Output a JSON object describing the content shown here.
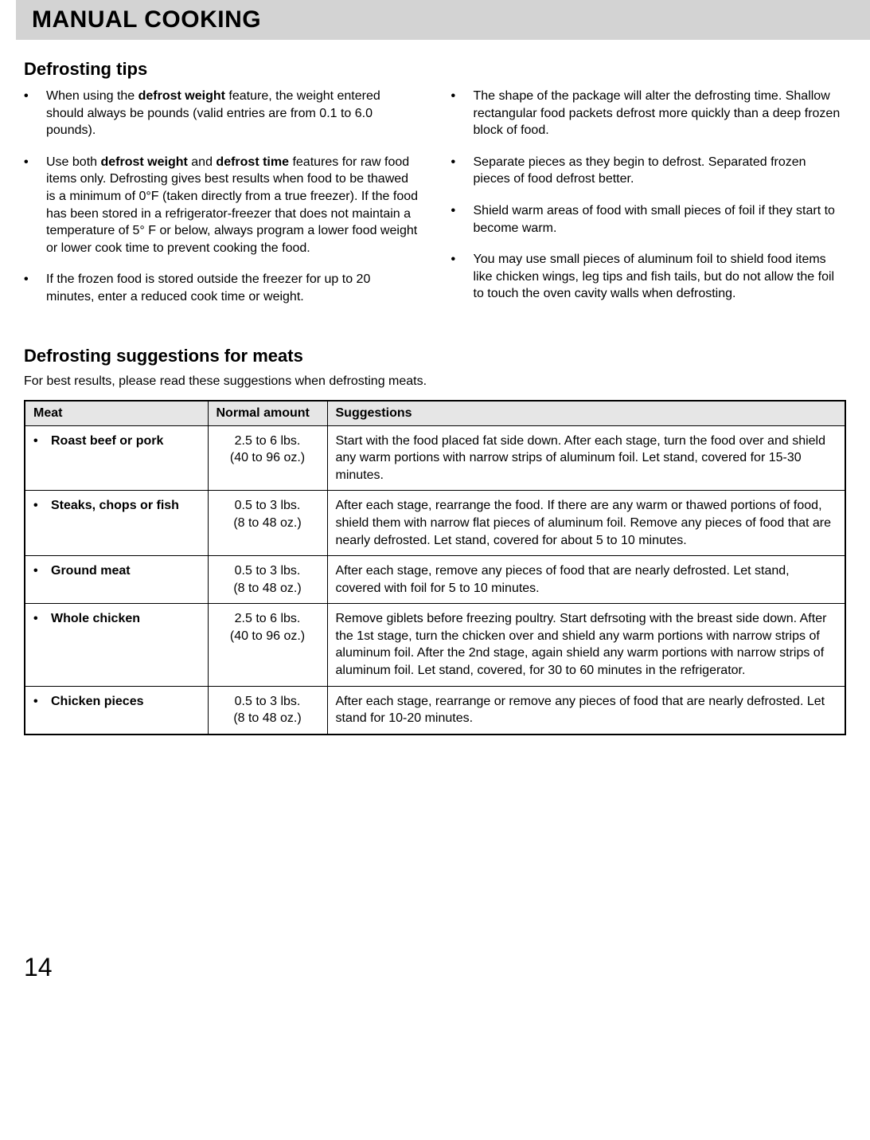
{
  "header": {
    "title": "MANUAL COOKING"
  },
  "tips": {
    "title": "Defrosting tips",
    "left": [
      {
        "prefix": "When using the ",
        "bold1": "defrost weight",
        "mid1": " feature, the weight entered should always be pounds (valid entries are from 0.1 to 6.0 pounds).",
        "bold2": "",
        "suffix": ""
      },
      {
        "prefix": "Use both ",
        "bold1": "defrost weight",
        "mid1": " and ",
        "bold2": "defrost time",
        "suffix": " features for raw food items only. Defrosting gives best results when food to be thawed is a minimum of 0°F (taken directly from a true freezer). If the food has been stored in a refrigerator-freezer that does not maintain a temperature of 5° F or below, always program a lower food weight or lower cook time to prevent cooking the food."
      },
      {
        "prefix": "If the frozen food is stored outside the freezer for up to 20 minutes, enter a reduced cook time or weight.",
        "bold1": "",
        "mid1": "",
        "bold2": "",
        "suffix": ""
      }
    ],
    "right": [
      {
        "prefix": "The shape of the package will alter the defrosting time. Shallow rectangular food packets defrost more quickly than a deep frozen block of food.",
        "bold1": "",
        "mid1": "",
        "bold2": "",
        "suffix": ""
      },
      {
        "prefix": "Separate pieces as they begin to defrost. Separated frozen pieces of food defrost better.",
        "bold1": "",
        "mid1": "",
        "bold2": "",
        "suffix": ""
      },
      {
        "prefix": "Shield warm areas of food with small pieces of foil if they start to become warm.",
        "bold1": "",
        "mid1": "",
        "bold2": "",
        "suffix": ""
      },
      {
        "prefix": "You may use small pieces of aluminum foil to shield food items like chicken wings, leg tips and fish tails, but do not allow the foil to touch the oven cavity walls when defrosting.",
        "bold1": "",
        "mid1": "",
        "bold2": "",
        "suffix": ""
      }
    ]
  },
  "meat_section": {
    "title": "Defrosting suggestions for meats",
    "intro": "For best results, please read these suggestions when defrosting meats.",
    "headers": {
      "meat": "Meat",
      "amount": "Normal amount",
      "suggestions": "Suggestions"
    },
    "rows": [
      {
        "meat": "Roast beef or pork",
        "amount_main": "2.5 to 6 lbs.",
        "amount_sub": "(40 to 96 oz.)",
        "suggestion": "Start with the food placed fat side down. After each stage, turn the food over and shield any warm portions with narrow strips of aluminum foil. Let stand, covered for 15-30 minutes."
      },
      {
        "meat": "Steaks, chops or fish",
        "amount_main": "0.5 to 3 lbs.",
        "amount_sub": "(8 to 48 oz.)",
        "suggestion": "After each stage, rearrange the food. If there are any warm or thawed portions of food, shield them with narrow flat pieces of aluminum foil. Remove any pieces of food that are nearly defrosted. Let stand, covered for about 5 to 10 minutes."
      },
      {
        "meat": "Ground meat",
        "amount_main": "0.5 to 3 lbs.",
        "amount_sub": "(8 to 48 oz.)",
        "suggestion": "After each stage, remove any pieces of food that are nearly defrosted. Let stand, covered with foil for 5 to 10 minutes."
      },
      {
        "meat": "Whole chicken",
        "amount_main": "2.5 to 6 lbs.",
        "amount_sub": "(40 to 96 oz.)",
        "suggestion": "Remove giblets before freezing poultry. Start defrsoting with the breast side down. After the 1st stage, turn the chicken over and shield any warm portions with narrow strips of aluminum foil. After the 2nd stage, again shield any warm portions with narrow strips of aluminum foil. Let stand, covered, for 30 to 60 minutes in the refrigerator."
      },
      {
        "meat": "Chicken pieces",
        "amount_main": "0.5 to 3 lbs.",
        "amount_sub": "(8 to 48 oz.)",
        "suggestion": "After each stage, rearrange or remove any pieces of food that are nearly defrosted. Let stand for 10-20 minutes."
      }
    ]
  },
  "page_number": "14",
  "styling": {
    "header_bg": "#d3d3d3",
    "table_header_bg": "#e6e6e6",
    "border_color": "#000000",
    "bg_color": "#ffffff",
    "text_color": "#000000",
    "header_fontsize": 30,
    "section_title_fontsize": 22,
    "body_fontsize": 16,
    "page_number_fontsize": 32
  }
}
